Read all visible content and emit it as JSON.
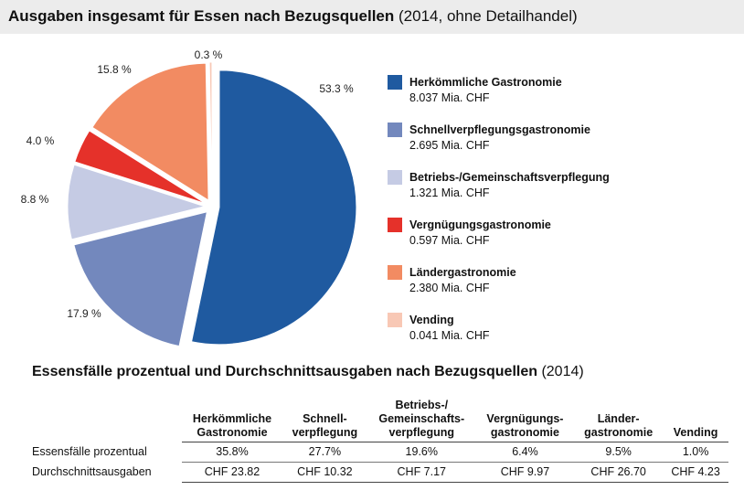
{
  "header": {
    "title_bold": "Ausgaben insgesamt für Essen nach Bezugsquellen",
    "title_note": "(2014, ohne Detailhandel)"
  },
  "chart_data": {
    "type": "pie",
    "exploded": true,
    "slices": [
      {
        "name": "Herkömmliche Gastronomie",
        "percent": 53.3,
        "percent_label": "53.3 %",
        "value_label": "8.037 Mia. CHF",
        "color": "#1f5aa0"
      },
      {
        "name": "Schnellverpflegungsgastronomie",
        "percent": 17.9,
        "percent_label": "17.9 %",
        "value_label": "2.695 Mia. CHF",
        "color": "#7388bd"
      },
      {
        "name": "Betriebs-/Gemeinschaftsverpflegung",
        "percent": 8.8,
        "percent_label": "8.8 %",
        "value_label": "1.321 Mia. CHF",
        "color": "#c5cbe4"
      },
      {
        "name": "Vergnügungsgastronomie",
        "percent": 4.0,
        "percent_label": "4.0 %",
        "value_label": "0.597 Mia. CHF",
        "color": "#e5312a"
      },
      {
        "name": "Ländergastronomie",
        "percent": 15.8,
        "percent_label": "15.8 %",
        "value_label": "2.380 Mia. CHF",
        "color": "#f28b62"
      },
      {
        "name": "Vending",
        "percent": 0.3,
        "percent_label": "0.3 %",
        "value_label": "0.041 Mia. CHF",
        "color": "#f8c8b5"
      }
    ]
  },
  "table": {
    "title_bold": "Essensfälle prozentual und Durchschnittsausgaben nach Bezugsquellen",
    "title_note": "(2014)",
    "columns": [
      {
        "line1": "Herkömmliche",
        "line2": "Gastronomie"
      },
      {
        "line1": "Schnell-",
        "line2": "verpflegung"
      },
      {
        "line0": "Betriebs-/",
        "line1": "Gemeinschafts-",
        "line2": "verpflegung"
      },
      {
        "line1": "Vergnügungs-",
        "line2": "gastronomie"
      },
      {
        "line1": "Länder-",
        "line2": "gastronomie"
      },
      {
        "line1": "",
        "line2": "Vending"
      }
    ],
    "rows": [
      {
        "label": "Essensfälle prozentual",
        "cells": [
          "35.8%",
          "27.7%",
          "19.6%",
          "6.4%",
          "9.5%",
          "1.0%"
        ]
      },
      {
        "label": "Durchschnittsausgaben",
        "cells": [
          "CHF 23.82",
          "CHF 10.32",
          "CHF 7.17",
          "CHF 9.97",
          "CHF 26.70",
          "CHF 4.23"
        ]
      }
    ]
  }
}
